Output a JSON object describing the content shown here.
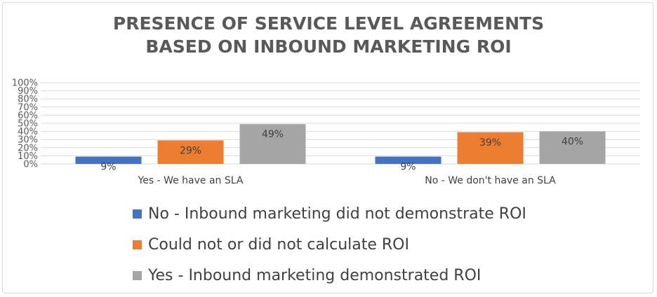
{
  "chart_data": {
    "type": "bar",
    "title_lines": [
      "PRESENCE OF SERVICE LEVEL AGREEMENTS",
      "BASED ON INBOUND MARKETING ROI"
    ],
    "categories": [
      "Yes - We have an SLA",
      "No - We don't have an SLA"
    ],
    "series": [
      {
        "name": "No - Inbound marketing did not demonstrate ROI",
        "color": "#4472c4",
        "values": [
          9,
          9
        ],
        "labels": [
          "9%",
          "9%"
        ]
      },
      {
        "name": "Could not or did not calculate ROI",
        "color": "#ed7d31",
        "values": [
          29,
          39
        ],
        "labels": [
          "29%",
          "39%"
        ]
      },
      {
        "name": "Yes - Inbound marketing demonstrated ROI",
        "color": "#a5a5a5",
        "values": [
          49,
          40
        ],
        "labels": [
          "49%",
          "40%"
        ]
      }
    ],
    "y_ticks": [
      "0%",
      "10%",
      "20%",
      "30%",
      "40%",
      "50%",
      "60%",
      "70%",
      "80%",
      "90%",
      "100%"
    ],
    "ylim": [
      0,
      100
    ],
    "grid": true,
    "legend_position": "bottom"
  }
}
